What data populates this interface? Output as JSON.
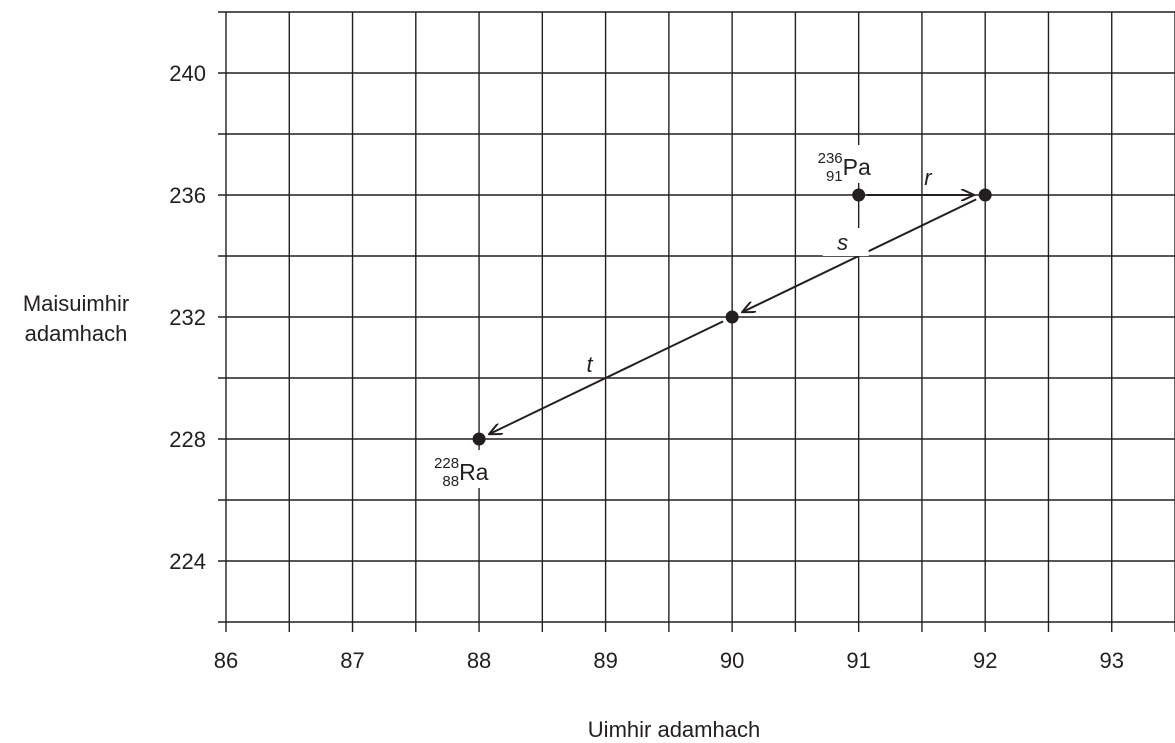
{
  "chart_data": {
    "type": "scatter",
    "xlabel": "Uimhir adamhach",
    "ylabel_lines": [
      "Maisuimhir",
      "adamhach"
    ],
    "xlim": [
      86,
      93.5
    ],
    "ylim": [
      222,
      242
    ],
    "x_ticks": [
      "86",
      "87",
      "88",
      "89",
      "90",
      "91",
      "92",
      "93"
    ],
    "y_ticks": [
      "224",
      "228",
      "232",
      "236",
      "240"
    ],
    "grid": true,
    "points": [
      {
        "x": 91,
        "y": 236
      },
      {
        "x": 92,
        "y": 236
      },
      {
        "x": 90,
        "y": 232
      },
      {
        "x": 88,
        "y": 228
      }
    ],
    "nuclides": [
      {
        "mass": "236",
        "atomic": "91",
        "symbol": "Pa",
        "x": 91,
        "y": 236
      },
      {
        "mass": "228",
        "atomic": "88",
        "symbol": "Ra",
        "x": 88,
        "y": 228
      }
    ],
    "arrows": [
      {
        "label": "r",
        "from": [
          91,
          236
        ],
        "to": [
          92,
          236
        ]
      },
      {
        "label": "s",
        "from": [
          92,
          236
        ],
        "to": [
          90,
          232
        ]
      },
      {
        "label": "t",
        "from": [
          90,
          232
        ],
        "to": [
          88,
          228
        ]
      }
    ]
  }
}
